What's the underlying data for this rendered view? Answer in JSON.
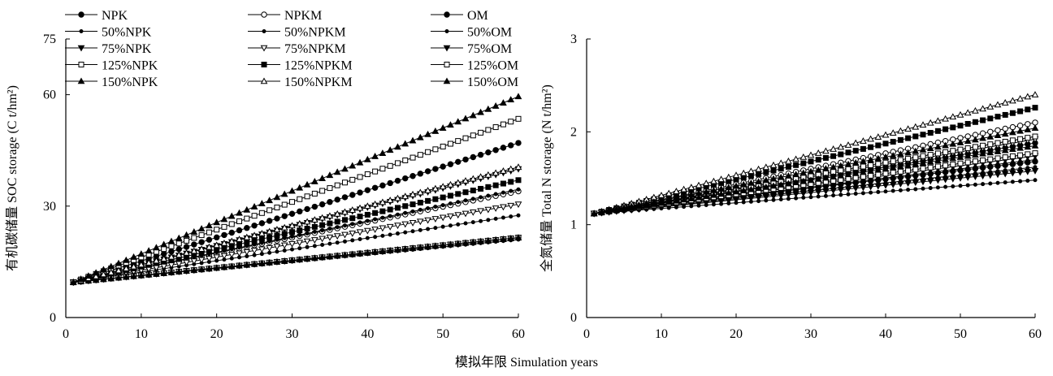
{
  "shared_xlabel": "模拟年限 Simulation years",
  "chart_data": [
    {
      "type": "line",
      "ylabel": "有机碳储量 SOC storage (C t/hm²)",
      "xlim": [
        0,
        60
      ],
      "ylim": [
        0,
        75
      ],
      "xticks": [
        0,
        10,
        20,
        30,
        40,
        50,
        60
      ],
      "yticks": [
        0,
        30,
        60,
        75
      ],
      "grid": false,
      "legend_position": "top-left",
      "x_range_points": [
        1,
        60
      ],
      "series": [
        {
          "name": "NPK",
          "marker": "circle-filled",
          "marker_size": 3.2,
          "values": [
            9.5,
            21.5
          ]
        },
        {
          "name": "NPKM",
          "marker": "circle-open",
          "marker_size": 3.2,
          "values": [
            9.5,
            34.0
          ]
        },
        {
          "name": "OM",
          "marker": "circle-filled",
          "marker_size": 3.2,
          "values": [
            9.5,
            47.0
          ]
        },
        {
          "name": "50%NPK",
          "marker": "circle-filled",
          "marker_size": 2.0,
          "values": [
            9.5,
            21.0
          ]
        },
        {
          "name": "50%NPKM",
          "marker": "circle-filled",
          "marker_size": 2.0,
          "values": [
            9.5,
            27.5
          ]
        },
        {
          "name": "50%OM",
          "marker": "circle-filled",
          "marker_size": 2.0,
          "values": [
            9.5,
            34.5
          ]
        },
        {
          "name": "75%NPK",
          "marker": "triangle-down-filled",
          "marker_size": 3.5,
          "values": [
            9.5,
            21.5
          ]
        },
        {
          "name": "75%NPKM",
          "marker": "triangle-down-open",
          "marker_size": 3.5,
          "values": [
            9.5,
            30.5
          ]
        },
        {
          "name": "75%OM",
          "marker": "triangle-down-filled",
          "marker_size": 3.5,
          "values": [
            9.5,
            40.0
          ]
        },
        {
          "name": "125%NPK",
          "marker": "square-open",
          "marker_size": 3.0,
          "values": [
            9.5,
            21.5
          ]
        },
        {
          "name": "125%NPKM",
          "marker": "square-filled",
          "marker_size": 3.0,
          "values": [
            9.5,
            37.0
          ]
        },
        {
          "name": "125%OM",
          "marker": "square-open",
          "marker_size": 3.0,
          "values": [
            9.5,
            53.5
          ]
        },
        {
          "name": "150%NPK",
          "marker": "triangle-up-filled",
          "marker_size": 3.5,
          "values": [
            9.5,
            21.5
          ]
        },
        {
          "name": "150%NPKM",
          "marker": "triangle-up-open",
          "marker_size": 3.5,
          "values": [
            9.5,
            40.5
          ]
        },
        {
          "name": "150%OM",
          "marker": "triangle-up-filled",
          "marker_size": 3.5,
          "values": [
            9.5,
            59.5
          ]
        }
      ]
    },
    {
      "type": "line",
      "ylabel": "全氮储量 Total N storage (N t/hm²)",
      "xlim": [
        0,
        60
      ],
      "ylim": [
        0,
        3
      ],
      "xticks": [
        0,
        10,
        20,
        30,
        40,
        50,
        60
      ],
      "yticks": [
        0,
        1,
        2,
        3
      ],
      "grid": false,
      "x_range_points": [
        1,
        60
      ],
      "series": [
        {
          "name": "NPK",
          "start": 1.12,
          "end": 1.68,
          "marker": "circle-filled",
          "marker_size": 3.2
        },
        {
          "name": "NPKM",
          "start": 1.12,
          "end": 2.1,
          "marker": "circle-open",
          "marker_size": 3.2
        },
        {
          "name": "OM",
          "start": 1.12,
          "end": 1.88,
          "marker": "circle-filled",
          "marker_size": 3.2
        },
        {
          "name": "50%NPK",
          "start": 1.12,
          "end": 1.48,
          "marker": "circle-filled",
          "marker_size": 2.0
        },
        {
          "name": "50%NPKM",
          "start": 1.12,
          "end": 1.7,
          "marker": "circle-filled",
          "marker_size": 2.0
        },
        {
          "name": "50%OM",
          "start": 1.12,
          "end": 1.62,
          "marker": "circle-filled",
          "marker_size": 2.0
        },
        {
          "name": "75%NPK",
          "start": 1.12,
          "end": 1.58,
          "marker": "triangle-down-filled",
          "marker_size": 3.5
        },
        {
          "name": "75%NPKM",
          "start": 1.12,
          "end": 1.92,
          "marker": "triangle-down-open",
          "marker_size": 3.5
        },
        {
          "name": "75%OM",
          "start": 1.12,
          "end": 1.74,
          "marker": "triangle-down-filled",
          "marker_size": 3.5
        },
        {
          "name": "125%NPK",
          "start": 1.12,
          "end": 1.77,
          "marker": "square-open",
          "marker_size": 3.0
        },
        {
          "name": "125%NPKM",
          "start": 1.12,
          "end": 2.26,
          "marker": "square-filled",
          "marker_size": 3.0
        },
        {
          "name": "125%OM",
          "start": 1.12,
          "end": 1.95,
          "marker": "square-open",
          "marker_size": 3.0
        },
        {
          "name": "150%NPK",
          "start": 1.12,
          "end": 1.85,
          "marker": "triangle-up-filled",
          "marker_size": 3.5
        },
        {
          "name": "150%NPKM",
          "start": 1.12,
          "end": 2.4,
          "marker": "triangle-up-open",
          "marker_size": 3.5
        },
        {
          "name": "150%OM",
          "start": 1.12,
          "end": 2.04,
          "marker": "triangle-up-filled",
          "marker_size": 3.5
        }
      ]
    }
  ]
}
